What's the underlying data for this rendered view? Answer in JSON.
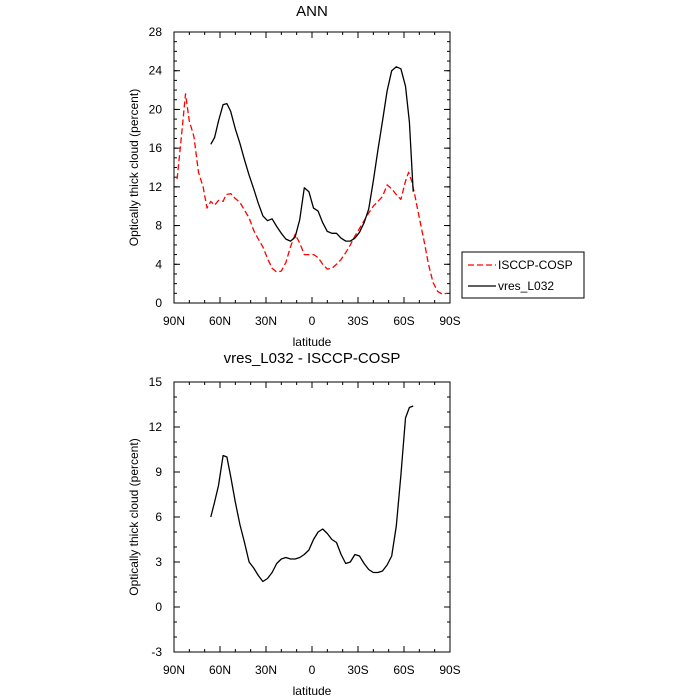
{
  "chart_data": [
    {
      "type": "line",
      "title": "ANN",
      "xlabel": "latitude",
      "ylabel": "Optically thick cloud (percent)",
      "xlim": [
        90,
        -90
      ],
      "ylim": [
        0,
        28
      ],
      "x_ticks": [
        90,
        60,
        30,
        0,
        -30,
        -60,
        -90
      ],
      "x_tick_labels": [
        "90N",
        "60N",
        "30N",
        "0",
        "30S",
        "60S",
        "90S"
      ],
      "y_ticks": [
        0,
        4,
        8,
        12,
        16,
        20,
        24,
        28
      ],
      "y_tick_labels": [
        "0",
        "4",
        "8",
        "12",
        "16",
        "20",
        "24",
        "28"
      ],
      "legend_position": "right",
      "series": [
        {
          "name": "ISCCP-COSP",
          "color": "#ff0000",
          "dash": "dashed",
          "x": [
            88,
            85,
            82.5,
            80,
            77,
            74,
            71,
            68.5,
            66,
            63.5,
            61,
            58,
            56,
            53,
            50,
            47,
            44,
            41,
            38,
            35,
            32,
            29,
            26,
            23,
            20,
            17,
            14,
            11,
            8,
            5,
            2,
            -1,
            -4,
            -7,
            -10,
            -13,
            -16,
            -19,
            -22,
            -25,
            -28,
            -31,
            -34,
            -37,
            -40,
            -43,
            -46,
            -49,
            -52,
            -55,
            -58,
            -61,
            -63,
            -65,
            -67,
            -70,
            -73,
            -76,
            -79,
            -82,
            -85,
            -88
          ],
          "y": [
            12.8,
            17.5,
            21.6,
            18.8,
            17.2,
            13.5,
            12,
            9.8,
            10.5,
            10.1,
            10.6,
            10.5,
            11.2,
            11.3,
            10.8,
            10.4,
            9.6,
            8.8,
            7.5,
            6.6,
            5.8,
            4.6,
            3.6,
            3.2,
            3.3,
            4.2,
            5.8,
            7.1,
            6.2,
            5.0,
            5.0,
            5.0,
            4.7,
            4.0,
            3.5,
            3.6,
            4.0,
            4.5,
            5.2,
            6.0,
            6.9,
            7.7,
            8.5,
            9.3,
            10.0,
            10.5,
            11.0,
            12.2,
            11.8,
            11.2,
            10.7,
            12.6,
            13.5,
            12.6,
            11.2,
            8.8,
            6.5,
            4.0,
            2.1,
            1.2,
            0.9,
            1.0
          ]
        },
        {
          "name": "vres_L032",
          "color": "#000000",
          "dash": "solid",
          "x": [
            66,
            63.5,
            61,
            58,
            55.5,
            53,
            50,
            47,
            44,
            41,
            38,
            35,
            32,
            29,
            26,
            23,
            20,
            17,
            14,
            11,
            8,
            5,
            2,
            -1,
            -4,
            -7,
            -10,
            -13,
            -16,
            -19,
            -22,
            -25,
            -28,
            -31,
            -34,
            -37,
            -40,
            -43,
            -46,
            -49,
            -52,
            -55,
            -58,
            -61,
            -63.5,
            -66
          ],
          "y": [
            16.4,
            17.1,
            18.8,
            20.5,
            20.6,
            19.8,
            18.0,
            16.5,
            14.8,
            13.2,
            11.8,
            10.3,
            9.0,
            8.5,
            8.7,
            7.9,
            7.2,
            6.6,
            6.4,
            6.8,
            8.6,
            11.9,
            11.5,
            9.8,
            9.5,
            8.3,
            7.4,
            7.2,
            7.2,
            6.7,
            6.4,
            6.4,
            6.7,
            7.3,
            8.3,
            9.7,
            12.6,
            15.8,
            18.8,
            21.9,
            24.0,
            24.4,
            24.2,
            22.4,
            18.7,
            11.5
          ]
        }
      ]
    },
    {
      "type": "line",
      "title": "vres_L032 - ISCCP-COSP",
      "xlabel": "latitude",
      "ylabel": "Optically thick cloud (percent)",
      "xlim": [
        90,
        -90
      ],
      "ylim": [
        -3,
        15
      ],
      "x_ticks": [
        90,
        60,
        30,
        0,
        -30,
        -60,
        -90
      ],
      "x_tick_labels": [
        "90N",
        "60N",
        "30N",
        "0",
        "30S",
        "60S",
        "90S"
      ],
      "y_ticks": [
        -3,
        0,
        3,
        6,
        9,
        12,
        15
      ],
      "y_tick_labels": [
        "-3",
        "0",
        "3",
        "6",
        "9",
        "12",
        "15"
      ],
      "series": [
        {
          "color": "#000000",
          "dash": "solid",
          "x": [
            66,
            63.5,
            61,
            58,
            55.5,
            53,
            50,
            47,
            44,
            41,
            38,
            35,
            32,
            29,
            26,
            23,
            20,
            17,
            14,
            11,
            8,
            5,
            2,
            -1,
            -4,
            -7,
            -10,
            -13,
            -16,
            -19,
            -22,
            -25,
            -28,
            -31,
            -34,
            -37,
            -40,
            -43,
            -46,
            -49,
            -52,
            -55,
            -58,
            -61,
            -63.5,
            -66
          ],
          "y": [
            6.0,
            7.0,
            8.1,
            10.1,
            10.0,
            8.7,
            7.0,
            5.5,
            4.3,
            3.0,
            2.6,
            2.1,
            1.7,
            1.9,
            2.3,
            2.9,
            3.2,
            3.3,
            3.2,
            3.2,
            3.3,
            3.5,
            3.8,
            4.5,
            5.0,
            5.2,
            4.9,
            4.5,
            4.3,
            3.5,
            2.9,
            3.0,
            3.5,
            3.4,
            2.9,
            2.5,
            2.3,
            2.3,
            2.4,
            2.8,
            3.4,
            5.4,
            8.8,
            12.6,
            13.3,
            13.4
          ]
        }
      ]
    }
  ],
  "legend": {
    "items": [
      "ISCCP-COSP",
      "vres_L032"
    ]
  }
}
